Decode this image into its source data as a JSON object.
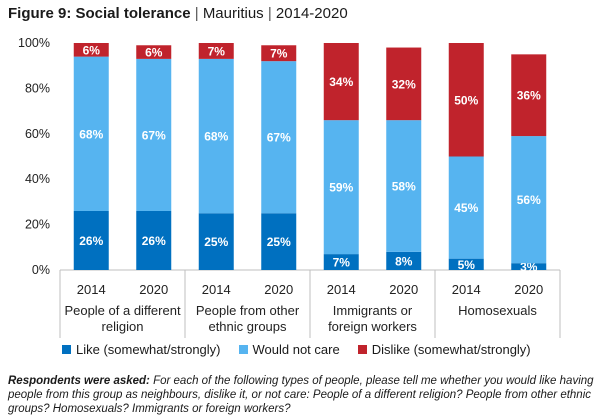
{
  "title": {
    "main": "Figure 9: Social tolerance",
    "separator": "|",
    "country": "Mauritius",
    "years": "2014-2020"
  },
  "note": {
    "lead": "Respondents were asked:",
    "text": " For each of the following types of people, please tell me whether you would like having people from this group as neighbours, dislike it, or not care: People of a different religion? People from other ethnic groups? Homosexuals? Immigrants or foreign workers?"
  },
  "chart_data": {
    "type": "bar",
    "stacked": true,
    "ylim": [
      0,
      100
    ],
    "yticks": [
      "0%",
      "20%",
      "40%",
      "60%",
      "80%",
      "100%"
    ],
    "grid": false,
    "legend_position": "bottom",
    "groups": [
      {
        "label": "People of a different religion",
        "label_lines": [
          "People of a different",
          "religion"
        ],
        "years": [
          "2014",
          "2020"
        ]
      },
      {
        "label": "People from other ethnic groups",
        "label_lines": [
          "People from other",
          "ethnic groups"
        ],
        "years": [
          "2014",
          "2020"
        ]
      },
      {
        "label": "Immigrants or foreign workers",
        "label_lines": [
          "Immigrants or",
          "foreign workers"
        ],
        "years": [
          "2014",
          "2020"
        ]
      },
      {
        "label": "Homosexuals",
        "label_lines": [
          "Homosexuals"
        ],
        "years": [
          "2014",
          "2020"
        ]
      }
    ],
    "categories": [
      "2014",
      "2020",
      "2014",
      "2020",
      "2014",
      "2020",
      "2014",
      "2020"
    ],
    "series": [
      {
        "name": "Like (somewhat/strongly)",
        "color": "#0070c0",
        "values": [
          26,
          26,
          25,
          25,
          7,
          8,
          5,
          3
        ],
        "labels": [
          "26%",
          "26%",
          "25%",
          "25%",
          "7%",
          "8%",
          "5%",
          "3%"
        ]
      },
      {
        "name": "Would not care",
        "color": "#56b4f0",
        "values": [
          68,
          67,
          68,
          67,
          59,
          58,
          45,
          56
        ],
        "labels": [
          "68%",
          "67%",
          "68%",
          "67%",
          "59%",
          "58%",
          "45%",
          "56%"
        ]
      },
      {
        "name": "Dislike (somewhat/strongly)",
        "color": "#c0232c",
        "values": [
          6,
          6,
          7,
          7,
          34,
          32,
          50,
          36
        ],
        "labels": [
          "6%",
          "6%",
          "7%",
          "7%",
          "34%",
          "32%",
          "50%",
          "36%"
        ]
      }
    ]
  }
}
